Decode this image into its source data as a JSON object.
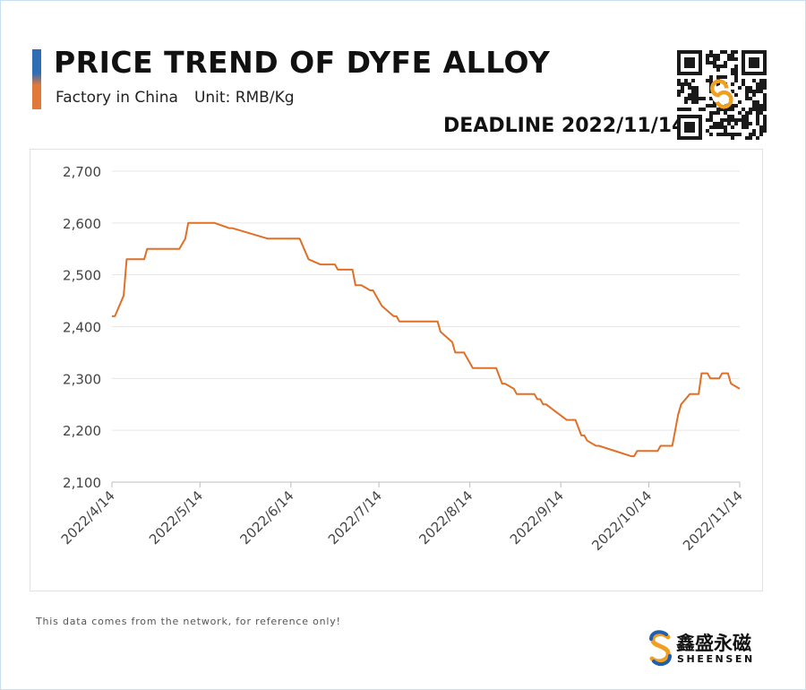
{
  "header": {
    "title": "PRICE TREND OF DYFE ALLOY",
    "subtitle_left": "Factory in China",
    "subtitle_right": "Unit: RMB/Kg",
    "deadline": "DEADLINE 2022/11/14"
  },
  "colors": {
    "line": "#e07027",
    "accent_top": "#2f6db5",
    "accent_bottom": "#e2783a",
    "grid": "#e6e6e6"
  },
  "icons": {
    "qr": "qr-code-icon",
    "logo": "sheensen-logo-icon"
  },
  "footer": {
    "note": "This data comes from the network, for reference only!",
    "logo_cn": "鑫盛永磁",
    "logo_en": "SHEENSEN"
  },
  "chart_data": {
    "type": "line",
    "title": "PRICE TREND OF DYFE ALLOY",
    "ylabel": "",
    "xlabel": "",
    "ylim": [
      2100,
      2700
    ],
    "yticks": [
      2100,
      2200,
      2300,
      2400,
      2500,
      2600,
      2700
    ],
    "ytick_labels": [
      "2,100",
      "2,200",
      "2,300",
      "2,400",
      "2,500",
      "2,600",
      "2,700"
    ],
    "xticks": [
      "2022/4/14",
      "2022/5/14",
      "2022/6/14",
      "2022/7/14",
      "2022/8/14",
      "2022/9/14",
      "2022/10/14",
      "2022/11/14"
    ],
    "grid": true,
    "legend": "none",
    "series": [
      {
        "x": [
          "2022/4/14",
          "2022/4/15",
          "2022/4/18",
          "2022/4/19",
          "2022/4/22",
          "2022/4/25",
          "2022/4/26",
          "2022/5/5",
          "2022/5/7",
          "2022/5/9",
          "2022/5/10",
          "2022/5/18",
          "2022/5/19",
          "2022/5/24",
          "2022/5/25",
          "2022/6/6",
          "2022/6/8",
          "2022/6/9",
          "2022/6/14",
          "2022/6/17",
          "2022/6/20",
          "2022/6/24",
          "2022/6/25",
          "2022/6/27",
          "2022/6/28",
          "2022/6/29",
          "2022/6/30",
          "2022/7/1",
          "2022/7/4",
          "2022/7/5",
          "2022/7/6",
          "2022/7/8",
          "2022/7/11",
          "2022/7/12",
          "2022/7/14",
          "2022/7/15",
          "2022/7/19",
          "2022/7/20",
          "2022/7/21",
          "2022/8/3",
          "2022/8/4",
          "2022/8/8",
          "2022/8/9",
          "2022/8/10",
          "2022/8/12",
          "2022/8/15",
          "2022/8/17",
          "2022/8/19",
          "2022/8/22",
          "2022/8/23",
          "2022/8/25",
          "2022/8/26",
          "2022/8/29",
          "2022/8/30",
          "2022/9/5",
          "2022/9/6",
          "2022/9/7",
          "2022/9/8",
          "2022/9/9",
          "2022/9/16",
          "2022/9/19",
          "2022/9/21",
          "2022/9/22",
          "2022/9/23",
          "2022/9/26",
          "2022/9/27",
          "2022/10/8",
          "2022/10/9",
          "2022/10/10",
          "2022/10/17",
          "2022/10/18",
          "2022/10/22",
          "2022/10/24",
          "2022/10/25",
          "2022/10/28",
          "2022/10/31",
          "2022/11/1",
          "2022/11/3",
          "2022/11/4",
          "2022/11/7",
          "2022/11/8",
          "2022/11/10",
          "2022/11/11",
          "2022/11/14"
        ],
        "values": [
          2420,
          2420,
          2460,
          2530,
          2530,
          2530,
          2550,
          2550,
          2550,
          2570,
          2600,
          2600,
          2600,
          2590,
          2590,
          2570,
          2570,
          2570,
          2570,
          2570,
          2530,
          2520,
          2520,
          2520,
          2520,
          2520,
          2510,
          2510,
          2510,
          2510,
          2480,
          2480,
          2470,
          2470,
          2450,
          2440,
          2420,
          2420,
          2410,
          2410,
          2390,
          2370,
          2350,
          2350,
          2350,
          2320,
          2320,
          2320,
          2320,
          2320,
          2290,
          2290,
          2280,
          2270,
          2270,
          2260,
          2260,
          2250,
          2250,
          2220,
          2220,
          2190,
          2190,
          2180,
          2170,
          2170,
          2150,
          2150,
          2160,
          2160,
          2170,
          2170,
          2230,
          2250,
          2270,
          2270,
          2310,
          2310,
          2300,
          2300,
          2310,
          2310,
          2290,
          2280
        ]
      }
    ]
  }
}
